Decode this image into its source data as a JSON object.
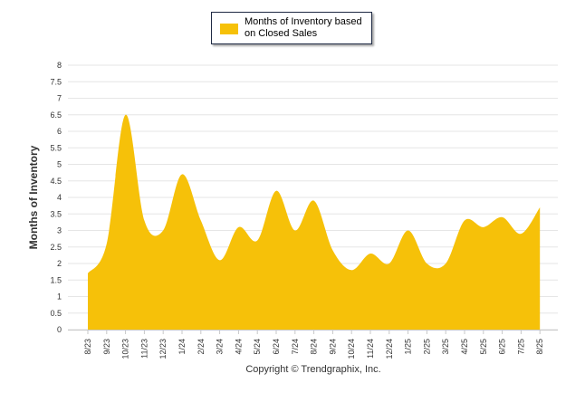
{
  "chart_data": {
    "type": "area",
    "categories": [
      "8/23",
      "9/23",
      "10/23",
      "11/23",
      "12/23",
      "1/24",
      "2/24",
      "3/24",
      "4/24",
      "5/24",
      "6/24",
      "7/24",
      "8/24",
      "9/24",
      "10/24",
      "11/24",
      "12/24",
      "1/25",
      "2/25",
      "3/25",
      "4/25",
      "5/25",
      "6/25",
      "7/25",
      "8/25"
    ],
    "series": [
      {
        "name": "Months of Inventory based on Closed Sales",
        "values": [
          1.7,
          2.6,
          6.5,
          3.3,
          3.0,
          4.7,
          3.3,
          2.1,
          3.1,
          2.7,
          4.2,
          3.0,
          3.9,
          2.4,
          1.8,
          2.3,
          2.0,
          3.0,
          2.0,
          2.0,
          3.3,
          3.1,
          3.4,
          2.9,
          3.7
        ]
      }
    ],
    "ylabel": "Months of Inventory",
    "ylim": [
      0,
      8
    ],
    "yticks": [
      "0",
      "0.5",
      "1",
      "1.5",
      "2",
      "2.5",
      "3",
      "3.5",
      "4",
      "4.5",
      "5",
      "5.5",
      "6",
      "6.5",
      "7",
      "7.5",
      "8"
    ],
    "grid": true,
    "legend_position": "top-center",
    "fill_color": "#f6c109",
    "footer": "Copyright © Trendgraphix, Inc."
  }
}
